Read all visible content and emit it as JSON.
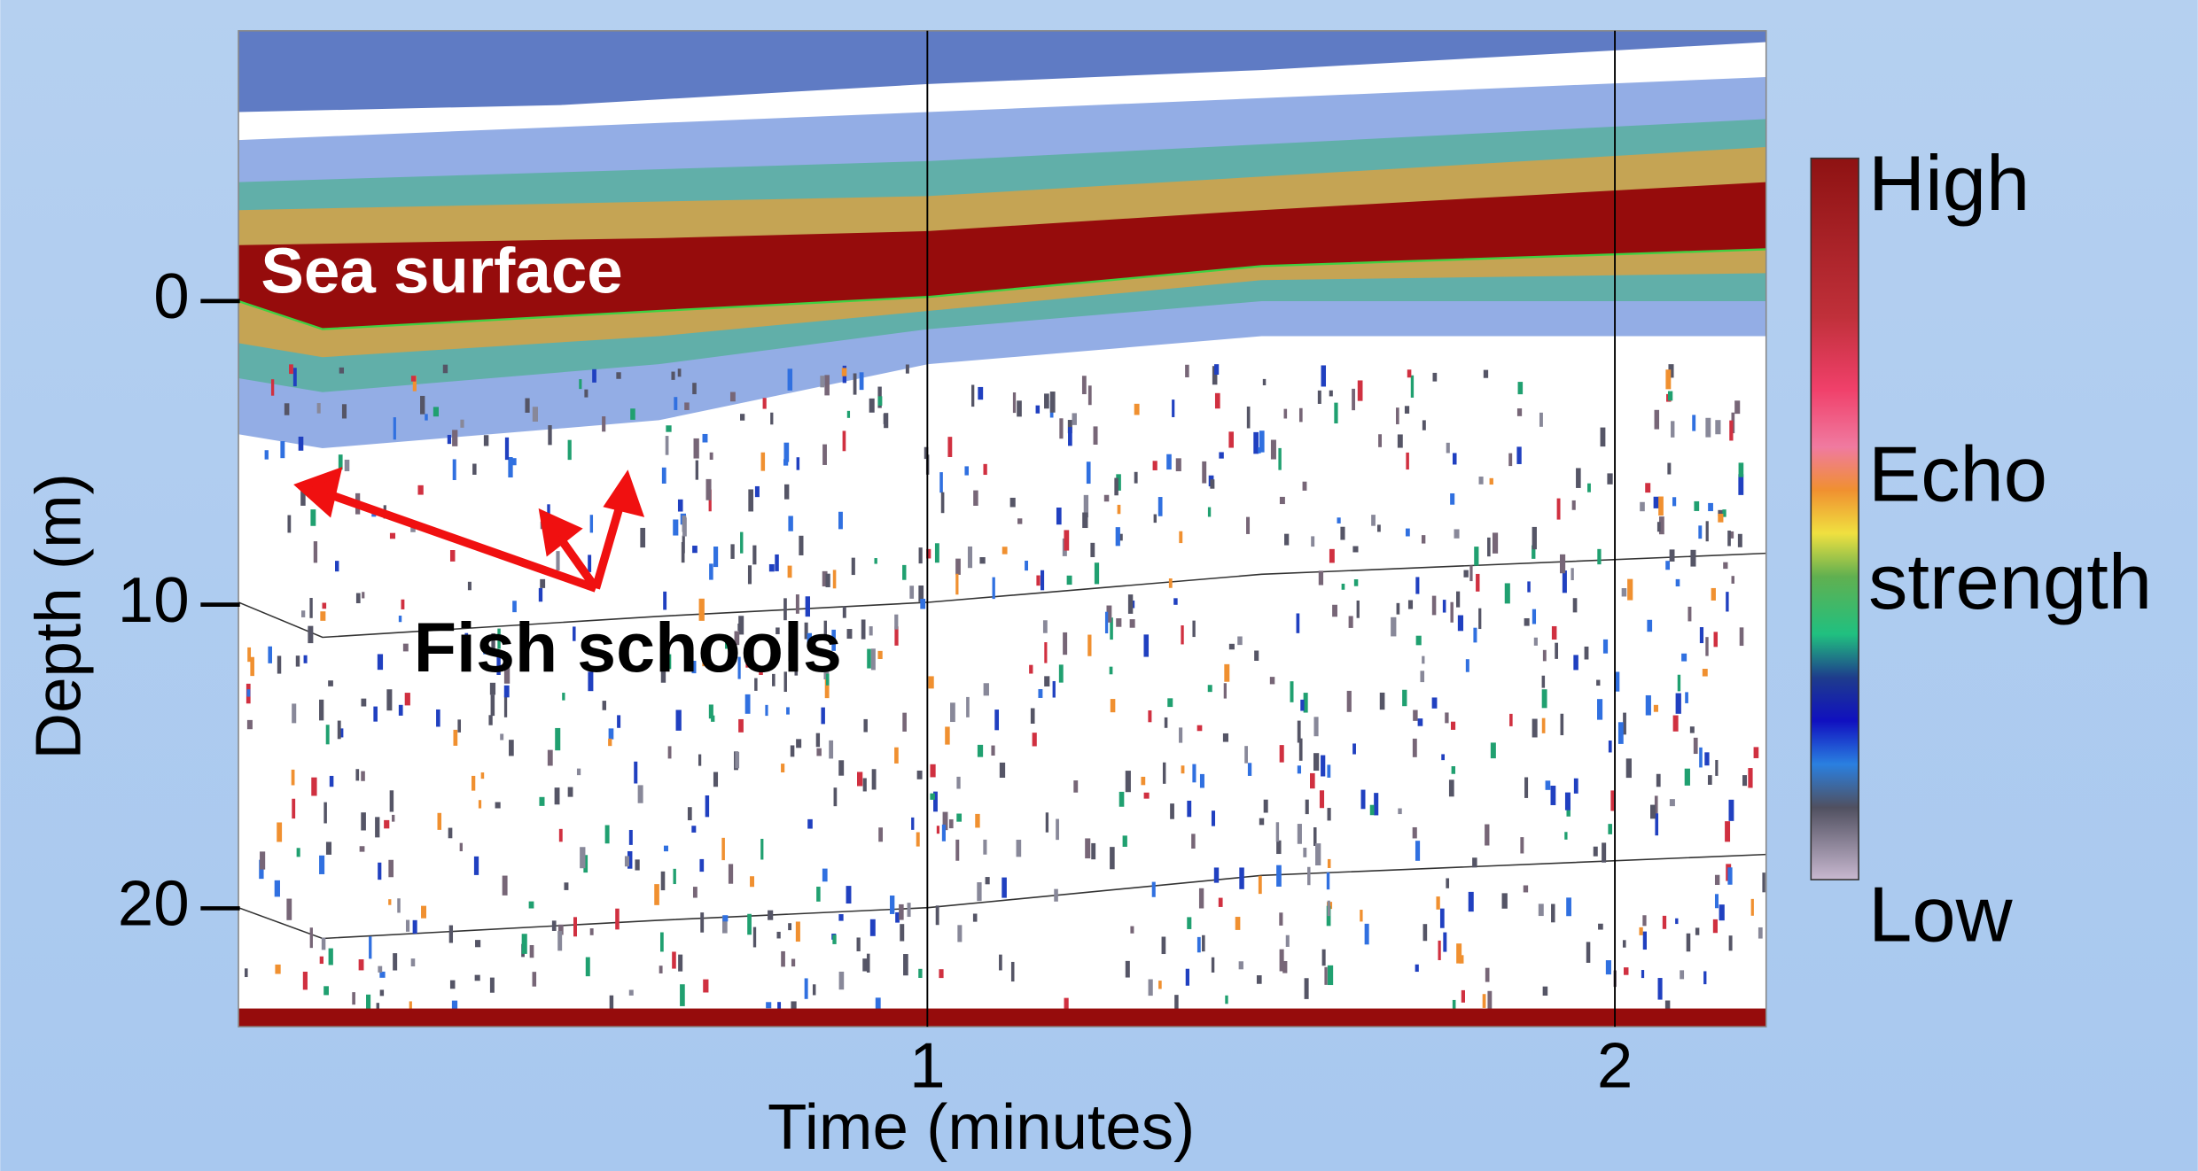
{
  "chart_data": {
    "type": "echogram",
    "x_label": "Time (minutes)",
    "y_label": "Depth (m)",
    "xlim": [
      0,
      2.22
    ],
    "ylim": [
      23.9,
      -8.9
    ],
    "xticks": [
      1,
      2
    ],
    "yticks": [
      0,
      10,
      20
    ],
    "colorbar": {
      "high": "High",
      "label": "Echo strength",
      "low": "Low"
    },
    "annotations": [
      "Sea surface",
      "Fish schools"
    ]
  }
}
